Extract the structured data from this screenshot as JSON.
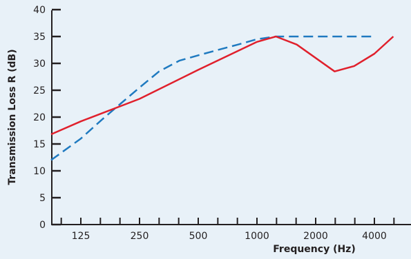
{
  "chart_data": {
    "type": "line",
    "title": "",
    "xlabel": "Frequency (Hz)",
    "ylabel": "Transmission Loss R (dB)",
    "x_scale": "log2",
    "x_ticks": [
      125,
      250,
      500,
      1000,
      2000,
      4000
    ],
    "y_ticks": [
      0,
      5,
      10,
      15,
      20,
      25,
      30,
      35,
      40
    ],
    "xlim": [
      80,
      6000
    ],
    "ylim": [
      0,
      40
    ],
    "grid": false,
    "legend": "none",
    "series": [
      {
        "color": "#1f7ac0",
        "style": "dash-dot",
        "x": [
          88,
          125,
          160,
          200,
          250,
          315,
          400,
          500,
          630,
          800,
          1000,
          1250,
          1600,
          2000,
          2500,
          3150,
          4000
        ],
        "y": [
          12,
          16,
          19.5,
          22.5,
          25.5,
          28.5,
          30.5,
          31.5,
          32.5,
          33.5,
          34.5,
          35,
          35,
          35,
          35,
          35,
          35
        ]
      },
      {
        "color": "#e0202c",
        "style": "solid",
        "x": [
          88,
          125,
          250,
          500,
          1000,
          1250,
          1600,
          2500,
          3150,
          4000,
          5000
        ],
        "y": [
          16.8,
          19.2,
          23.4,
          28.8,
          34,
          35,
          33.5,
          28.5,
          29.5,
          31.8,
          35
        ]
      }
    ]
  }
}
